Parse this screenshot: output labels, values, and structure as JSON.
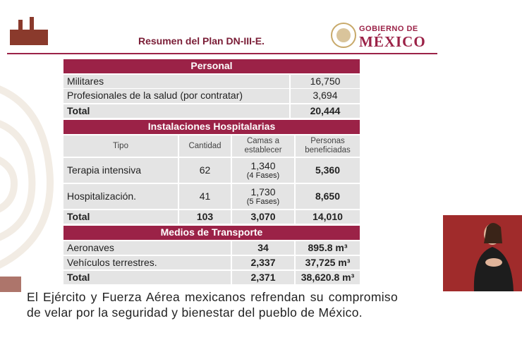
{
  "header": {
    "title": "Resumen del Plan DN-III-E.",
    "logo_line1": "GOBIERNO DE",
    "logo_line2": "MÉXICO"
  },
  "personal": {
    "title": "Personal",
    "rows": [
      [
        "Militares",
        "16,750"
      ],
      [
        "Profesionales de la salud (por contratar)",
        "3,694"
      ],
      [
        "Total",
        "20,444"
      ]
    ]
  },
  "hospitales": {
    "title": "Instalaciones Hospitalarias",
    "columns": [
      "Tipo",
      "Cantidad",
      "Camas a establecer",
      "Personas beneficiadas"
    ],
    "rows": [
      [
        "Terapia intensiva",
        "62",
        [
          "1,340",
          "(4 Fases)"
        ],
        "5,360"
      ],
      [
        "Hospitalización.",
        "41",
        [
          "1,730",
          "(5 Fases)"
        ],
        "8,650"
      ],
      [
        "Total",
        "103",
        [
          "3,070"
        ],
        "14,010"
      ]
    ]
  },
  "transporte": {
    "title": "Medios de Transporte",
    "rows": [
      [
        "Aeronaves",
        "34",
        "895.8 m³"
      ],
      [
        "Vehículos terrestres.",
        "2,337",
        "37,725 m³"
      ],
      [
        "Total",
        "2,371",
        "38,620.8 m³"
      ]
    ]
  },
  "footer": "El Ejército y Fuerza Aérea mexicanos refrendan su compromiso de velar por la seguridad y bienestar del pueblo de México."
}
